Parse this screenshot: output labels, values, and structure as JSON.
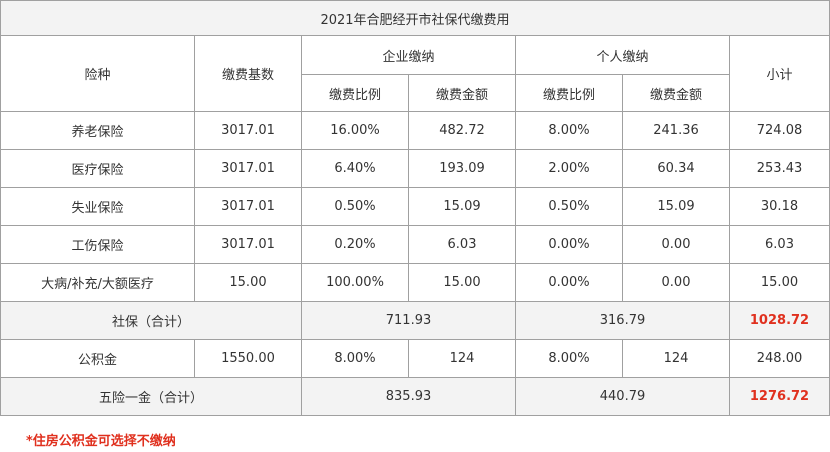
{
  "table": {
    "title": "2021年合肥经开市社保代缴费用",
    "headers": {
      "insurance_type": "险种",
      "base": "缴费基数",
      "company_group": "企业缴纳",
      "personal_group": "个人缴纳",
      "subtotal": "小计",
      "company_ratio": "缴费比例",
      "company_amount": "缴费金额",
      "personal_ratio": "缴费比例",
      "personal_amount": "缴费金额"
    },
    "rows": [
      {
        "name": "养老保险",
        "base": "3017.01",
        "c_ratio": "16.00%",
        "c_amount": "482.72",
        "p_ratio": "8.00%",
        "p_amount": "241.36",
        "subtotal": "724.08"
      },
      {
        "name": "医疗保险",
        "base": "3017.01",
        "c_ratio": "6.40%",
        "c_amount": "193.09",
        "p_ratio": "2.00%",
        "p_amount": "60.34",
        "subtotal": "253.43"
      },
      {
        "name": "失业保险",
        "base": "3017.01",
        "c_ratio": "0.50%",
        "c_amount": "15.09",
        "p_ratio": "0.50%",
        "p_amount": "15.09",
        "subtotal": "30.18"
      },
      {
        "name": "工伤保险",
        "base": "3017.01",
        "c_ratio": "0.20%",
        "c_amount": "6.03",
        "p_ratio": "0.00%",
        "p_amount": "0.00",
        "subtotal": "6.03"
      },
      {
        "name": "大病/补充/大额医疗",
        "base": "15.00",
        "c_ratio": "100.00%",
        "c_amount": "15.00",
        "p_ratio": "0.00%",
        "p_amount": "0.00",
        "subtotal": "15.00"
      }
    ],
    "social_total": {
      "label": "社保（合计）",
      "company": "711.93",
      "personal": "316.79",
      "subtotal": "1028.72"
    },
    "housing_fund": {
      "name": "公积金",
      "base": "1550.00",
      "c_ratio": "8.00%",
      "c_amount": "124",
      "p_ratio": "8.00%",
      "p_amount": "124",
      "subtotal": "248.00"
    },
    "grand_total": {
      "label": "五险一金（合计）",
      "company": "835.93",
      "personal": "440.79",
      "subtotal": "1276.72"
    }
  },
  "note": "*住房公积金可选择不缴纳",
  "colors": {
    "highlight": "#e0301e",
    "header_bg": "#f3f3f3",
    "border": "#a0a0a0"
  }
}
